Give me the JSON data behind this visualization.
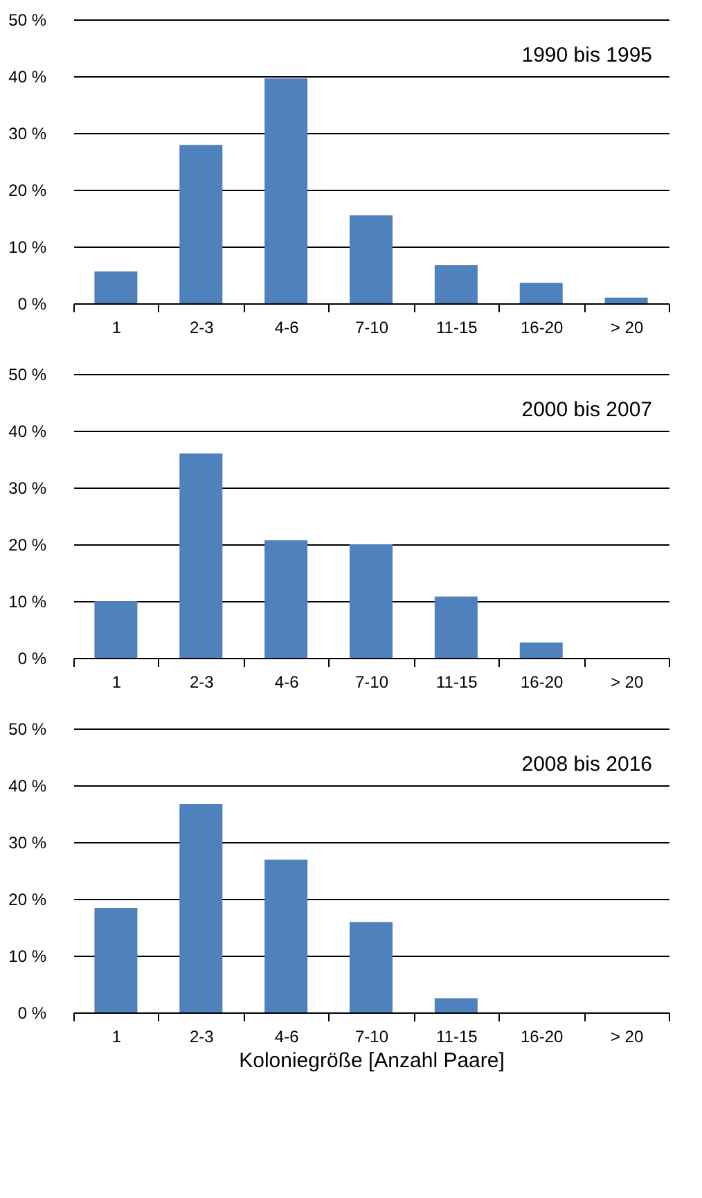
{
  "chart_data": [
    {
      "type": "bar",
      "title": "1990 bis 1995",
      "categories": [
        "1",
        "2-3",
        "4-6",
        "7-10",
        "11-15",
        "16-20",
        "> 20"
      ],
      "series": [
        {
          "color": "#4f81bd",
          "values": [
            5.6,
            27.9,
            39.6,
            15.5,
            6.7,
            3.6,
            1.0
          ]
        }
      ],
      "ylim": [
        0,
        50
      ],
      "yticks": [
        {
          "value": 0,
          "label": "0 %"
        },
        {
          "value": 10,
          "label": "10 %"
        },
        {
          "value": 20,
          "label": "20 %"
        },
        {
          "value": 30,
          "label": "30 %"
        },
        {
          "value": 40,
          "label": "40 %"
        },
        {
          "value": 50,
          "label": "50 %"
        }
      ],
      "grid": "y"
    },
    {
      "type": "bar",
      "title": "2000 bis 2007",
      "categories": [
        "1",
        "2-3",
        "4-6",
        "7-10",
        "11-15",
        "16-20",
        "> 20"
      ],
      "series": [
        {
          "color": "#4f81bd",
          "values": [
            10.0,
            36.0,
            20.7,
            20.0,
            10.8,
            2.7,
            0
          ]
        }
      ],
      "ylim": [
        0,
        50
      ],
      "yticks": [
        {
          "value": 0,
          "label": "0 %"
        },
        {
          "value": 10,
          "label": "10 %"
        },
        {
          "value": 20,
          "label": "20 %"
        },
        {
          "value": 30,
          "label": "30 %"
        },
        {
          "value": 40,
          "label": "40 %"
        },
        {
          "value": 50,
          "label": "50 %"
        }
      ],
      "grid": "y"
    },
    {
      "type": "bar",
      "title": "2008 bis 2016",
      "xlabel": "Koloniegröße [Anzahl Paare]",
      "categories": [
        "1",
        "2-3",
        "4-6",
        "7-10",
        "11-15",
        "16-20",
        "> 20"
      ],
      "series": [
        {
          "color": "#4f81bd",
          "values": [
            18.4,
            36.7,
            26.9,
            15.9,
            2.5,
            0,
            0
          ]
        }
      ],
      "ylim": [
        0,
        50
      ],
      "yticks": [
        {
          "value": 0,
          "label": "0 %"
        },
        {
          "value": 10,
          "label": "10 %"
        },
        {
          "value": 20,
          "label": "20 %"
        },
        {
          "value": 30,
          "label": "30 %"
        },
        {
          "value": 40,
          "label": "40 %"
        },
        {
          "value": 50,
          "label": "50 %"
        }
      ],
      "grid": "y"
    }
  ]
}
